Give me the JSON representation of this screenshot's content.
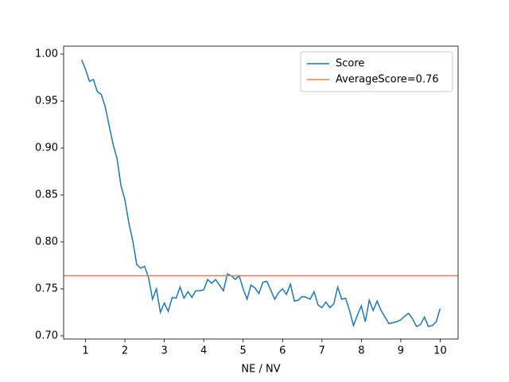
{
  "chart_data": {
    "type": "line",
    "xlabel": "NE / NV",
    "x": [
      0.9,
      1,
      1.1,
      1.2,
      1.3,
      1.4,
      1.5,
      1.6,
      1.7,
      1.8,
      1.9,
      2,
      2.1,
      2.2,
      2.3,
      2.4,
      2.5,
      2.6,
      2.7,
      2.8,
      2.9,
      3,
      3.1,
      3.2,
      3.3,
      3.4,
      3.5,
      3.6,
      3.7,
      3.8,
      3.9,
      4,
      4.1,
      4.2,
      4.3,
      4.4,
      4.5,
      4.6,
      4.7,
      4.8,
      4.9,
      5,
      5.1,
      5.2,
      5.3,
      5.4,
      5.5,
      5.6,
      5.7,
      5.8,
      5.9,
      6,
      6.1,
      6.2,
      6.3,
      6.4,
      6.5,
      6.6,
      6.7,
      6.8,
      6.9,
      7,
      7.1,
      7.2,
      7.3,
      7.4,
      7.5,
      7.6,
      7.7,
      7.8,
      7.9,
      8,
      8.1,
      8.2,
      8.3,
      8.4,
      8.5,
      8.6,
      8.7,
      8.8,
      8.9,
      9,
      9.1,
      9.2,
      9.3,
      9.4,
      9.5,
      9.6,
      9.7,
      9.8,
      9.9,
      10
    ],
    "series": [
      {
        "name": "Score",
        "color": "#1f77b4",
        "values": [
          0.994,
          0.984,
          0.971,
          0.973,
          0.96,
          0.957,
          0.944,
          0.924,
          0.904,
          0.889,
          0.86,
          0.845,
          0.82,
          0.801,
          0.776,
          0.772,
          0.774,
          0.762,
          0.739,
          0.75,
          0.725,
          0.735,
          0.726,
          0.741,
          0.74,
          0.752,
          0.74,
          0.747,
          0.741,
          0.748,
          0.748,
          0.749,
          0.76,
          0.756,
          0.76,
          0.754,
          0.748,
          0.766,
          0.764,
          0.76,
          0.764,
          0.75,
          0.739,
          0.754,
          0.751,
          0.745,
          0.757,
          0.758,
          0.749,
          0.739,
          0.746,
          0.75,
          0.744,
          0.755,
          0.737,
          0.738,
          0.742,
          0.741,
          0.739,
          0.747,
          0.733,
          0.73,
          0.736,
          0.73,
          0.734,
          0.752,
          0.739,
          0.74,
          0.727,
          0.711,
          0.722,
          0.732,
          0.715,
          0.738,
          0.727,
          0.737,
          0.727,
          0.72,
          0.713,
          0.714,
          0.715,
          0.717,
          0.721,
          0.724,
          0.718,
          0.71,
          0.712,
          0.72,
          0.71,
          0.711,
          0.715,
          0.729
        ]
      }
    ],
    "hlines": [
      {
        "name": "AverageScore=0.76",
        "color": "#ff7f0e",
        "value": 0.764
      }
    ],
    "xlim": [
      0.445,
      10.455
    ],
    "xticks": [
      1,
      2,
      3,
      4,
      5,
      6,
      7,
      8,
      9,
      10
    ],
    "ylim": [
      0.6966,
      1.0085
    ],
    "yticks": [
      {
        "value": 0.7,
        "label": "0.70"
      },
      {
        "value": 0.75,
        "label": "0.75"
      },
      {
        "value": 0.8,
        "label": "0.80"
      },
      {
        "value": 0.85,
        "label": "0.85"
      },
      {
        "value": 0.9,
        "label": "0.90"
      },
      {
        "value": 0.95,
        "label": "0.95"
      },
      {
        "value": 1.0,
        "label": "1.00"
      }
    ],
    "legend": "upper right"
  }
}
